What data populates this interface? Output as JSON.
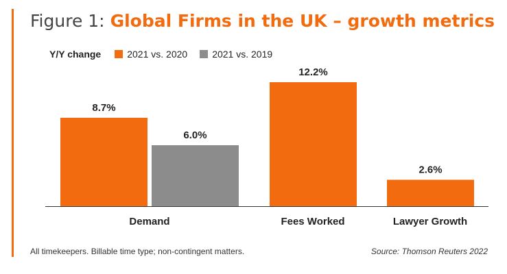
{
  "header": {
    "prefix": "Figure 1:",
    "title": "Global Firms in the UK – growth metrics"
  },
  "legend": {
    "caption": "Y/Y change",
    "entries": [
      {
        "label": "2021 vs. 2020",
        "color": "#f26b0f"
      },
      {
        "label": "2021 vs. 2019",
        "color": "#8c8c8c"
      }
    ]
  },
  "footer": {
    "note": "All timekeepers. Billable time type; non-contingent matters.",
    "source": "Source: Thomson Reuters 2022"
  },
  "chart_data": {
    "type": "bar",
    "title": "Global Firms in the UK – growth metrics",
    "xlabel": "",
    "ylabel": "",
    "ylim": [
      0,
      12.2
    ],
    "grid": false,
    "legend_position": "top-left",
    "categories": [
      "Demand",
      "Fees Worked",
      "Lawyer Growth"
    ],
    "series": [
      {
        "name": "2021 vs. 2020",
        "color": "#f26b0f",
        "values": [
          8.7,
          12.2,
          2.6
        ],
        "labels": [
          "8.7%",
          "12.2%",
          "2.6%"
        ]
      },
      {
        "name": "2021 vs. 2019",
        "color": "#8c8c8c",
        "values": [
          6.0,
          null,
          null
        ],
        "labels": [
          "6.0%",
          null,
          null
        ]
      }
    ]
  }
}
